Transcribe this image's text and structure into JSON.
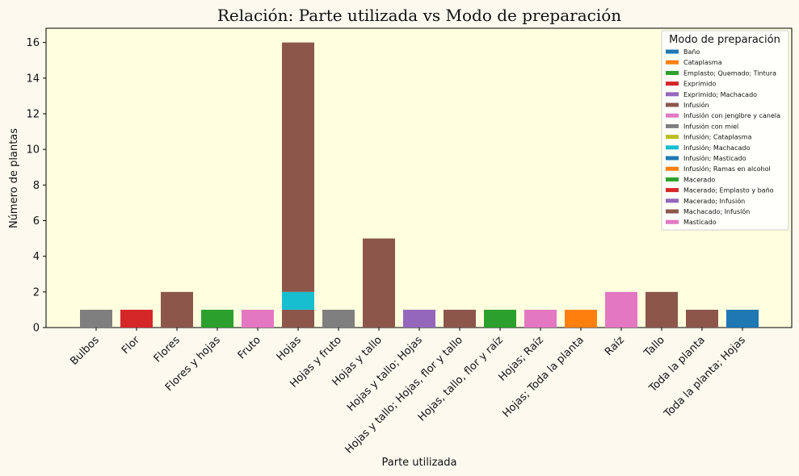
{
  "chart_data": {
    "type": "bar",
    "stacked": true,
    "title": "Relación: Parte utilizada vs Modo de preparación",
    "xlabel": "Parte utilizada",
    "ylabel": "Número de plantas",
    "ylim": [
      0,
      16.8
    ],
    "yticks": [
      0,
      2,
      4,
      6,
      8,
      10,
      12,
      14,
      16
    ],
    "grid": false,
    "legend_title": "Modo de preparación",
    "legend_position": "top-right",
    "background_color": "#ffffe0",
    "categories": [
      "Bulbos",
      "Flor",
      "Flores",
      "Flores y hojas",
      "Fruto",
      "Hojas",
      "Hojas y fruto",
      "Hojas y tallo",
      "Hojas y tallo; Hojas",
      "Hojas y tallo; Hojas, flor y tallo",
      "Hojas, tallo, flor y raíz",
      "Hojas; Raíz",
      "Hojas; Toda la planta",
      "Raíz",
      "Tallo",
      "Toda la planta",
      "Toda la planta; Hojas"
    ],
    "series": [
      {
        "name": "Baño",
        "color": "#1f77b4",
        "values": [
          0,
          0,
          0,
          0,
          0,
          0,
          0,
          0,
          0,
          0,
          0,
          0,
          0,
          0,
          0,
          0,
          0
        ]
      },
      {
        "name": "Cataplasma",
        "color": "#ff7f0e",
        "values": [
          0,
          0,
          0,
          0,
          0,
          0,
          0,
          0,
          0,
          0,
          0,
          0,
          0,
          0,
          0,
          0,
          0
        ]
      },
      {
        "name": "Emplasto; Quemado; Tintura",
        "color": "#2ca02c",
        "values": [
          0,
          0,
          0,
          0,
          0,
          0,
          0,
          0,
          0,
          0,
          0,
          0,
          0,
          0,
          0,
          0,
          0
        ]
      },
      {
        "name": "Exprimido",
        "color": "#d62728",
        "values": [
          0,
          0,
          0,
          0,
          0,
          0,
          0,
          0,
          0,
          0,
          0,
          0,
          0,
          0,
          0,
          0,
          0
        ]
      },
      {
        "name": "Exprimido; Machacado",
        "color": "#9467bd",
        "values": [
          0,
          0,
          0,
          0,
          0,
          0,
          0,
          0,
          0,
          0,
          0,
          0,
          0,
          0,
          0,
          0,
          0
        ]
      },
      {
        "name": "Infusión",
        "color": "#8c564b",
        "values": [
          0,
          0,
          0,
          0,
          0,
          1,
          0,
          0,
          0,
          0,
          0,
          0,
          0,
          0,
          0,
          0,
          0
        ]
      },
      {
        "name": "Infusión con jengibre y canela",
        "color": "#e377c2",
        "values": [
          0,
          0,
          0,
          0,
          0,
          0,
          0,
          0,
          0,
          0,
          0,
          0,
          0,
          0,
          0,
          0,
          0
        ]
      },
      {
        "name": "Infusión con miel",
        "color": "#7f7f7f",
        "values": [
          1,
          0,
          0,
          0,
          0,
          0,
          1,
          0,
          0,
          0,
          0,
          0,
          0,
          0,
          0,
          0,
          0
        ]
      },
      {
        "name": "Infusión; Cataplasma",
        "color": "#bcbd22",
        "values": [
          0,
          0,
          0,
          0,
          0,
          0,
          0,
          0,
          0,
          0,
          0,
          0,
          0,
          0,
          0,
          0,
          0
        ]
      },
      {
        "name": "Infusión; Machacado",
        "color": "#17becf",
        "values": [
          0,
          0,
          0,
          0,
          0,
          1,
          0,
          0,
          0,
          0,
          0,
          0,
          0,
          0,
          0,
          0,
          0
        ]
      },
      {
        "name": "Infusión; Masticado",
        "color": "#1f77b4",
        "values": [
          0,
          0,
          0,
          0,
          0,
          0,
          0,
          0,
          0,
          0,
          0,
          0,
          0,
          0,
          0,
          0,
          1
        ]
      },
      {
        "name": "Infusión; Ramas en alcohol",
        "color": "#ff7f0e",
        "values": [
          0,
          0,
          0,
          0,
          0,
          0,
          0,
          0,
          0,
          0,
          0,
          0,
          1,
          0,
          0,
          0,
          0
        ]
      },
      {
        "name": "Macerado",
        "color": "#2ca02c",
        "values": [
          0,
          0,
          0,
          1,
          0,
          0,
          0,
          0,
          0,
          0,
          1,
          0,
          0,
          0,
          0,
          0,
          0
        ]
      },
      {
        "name": "Macerado; Emplasto y baño",
        "color": "#d62728",
        "values": [
          0,
          1,
          0,
          0,
          0,
          0,
          0,
          0,
          0,
          0,
          0,
          0,
          0,
          0,
          0,
          0,
          0
        ]
      },
      {
        "name": "Macerado; Infusión",
        "color": "#9467bd",
        "values": [
          0,
          0,
          0,
          0,
          0,
          0,
          0,
          0,
          1,
          0,
          0,
          0,
          0,
          0,
          0,
          0,
          0
        ]
      },
      {
        "name": "Machacado; Infusión",
        "color": "#8c564b",
        "values": [
          0,
          0,
          2,
          0,
          0,
          14,
          0,
          5,
          0,
          1,
          0,
          0,
          0,
          0,
          2,
          1,
          0
        ]
      },
      {
        "name": "Masticado",
        "color": "#e377c2",
        "values": [
          0,
          0,
          0,
          0,
          1,
          0,
          0,
          0,
          0,
          0,
          0,
          1,
          0,
          2,
          0,
          0,
          0
        ]
      }
    ]
  }
}
